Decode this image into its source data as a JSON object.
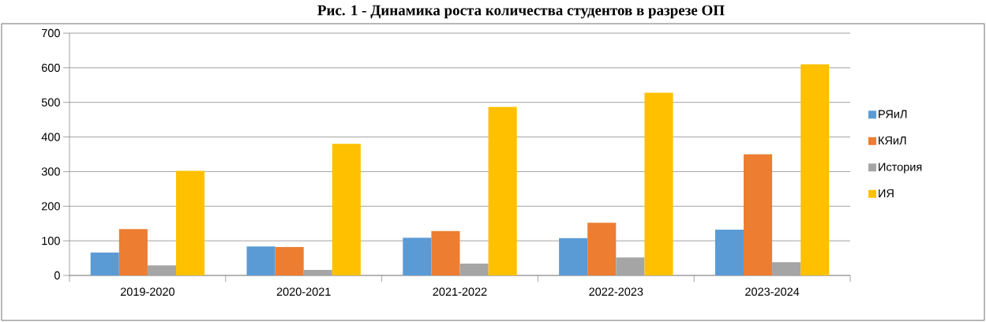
{
  "chart_data": {
    "type": "bar",
    "title": "Рис. 1 - Динамика роста количества студентов в разрезе ОП",
    "categories": [
      "2019-2020",
      "2020-2021",
      "2021-2022",
      "2022-2023",
      "2023-2024"
    ],
    "series": [
      {
        "name": "РЯиЛ",
        "color": "#5b9bd5",
        "values": [
          66,
          84,
          109,
          108,
          132
        ]
      },
      {
        "name": "КЯиЛ",
        "color": "#ed7d31",
        "values": [
          134,
          82,
          128,
          152,
          350
        ]
      },
      {
        "name": "История",
        "color": "#a5a5a5",
        "values": [
          29,
          16,
          34,
          52,
          38
        ]
      },
      {
        "name": "ИЯ",
        "color": "#ffc000",
        "values": [
          302,
          380,
          487,
          528,
          610
        ]
      }
    ],
    "ylim": [
      0,
      700
    ],
    "yticks": [
      0,
      100,
      200,
      300,
      400,
      500,
      600,
      700
    ],
    "grid": "y",
    "legend": "right"
  }
}
